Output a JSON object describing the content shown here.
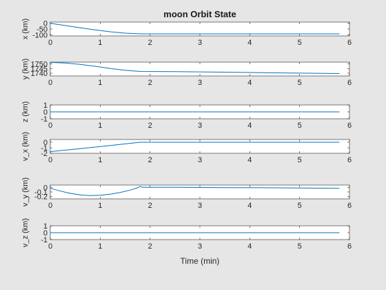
{
  "chart_data": {
    "type": "line",
    "title": "moon Orbit State",
    "xlabel": "Time (min)",
    "xlim": [
      0,
      6
    ],
    "xticks": [
      "0",
      "1",
      "2",
      "3",
      "4",
      "5",
      "6"
    ],
    "panels": [
      {
        "ylabel": "x (km)",
        "ylim": [
          -110,
          10
        ],
        "yticks": [
          {
            "v": 0,
            "label": "0"
          },
          {
            "v": -50,
            "label": "-50"
          },
          {
            "v": -100,
            "label": "-100"
          }
        ],
        "points": [
          [
            0,
            0
          ],
          [
            0.3,
            -20
          ],
          [
            0.6,
            -40
          ],
          [
            0.9,
            -58
          ],
          [
            1.2,
            -74
          ],
          [
            1.5,
            -86
          ],
          [
            1.8,
            -92
          ],
          [
            2.5,
            -92
          ],
          [
            3.5,
            -92
          ],
          [
            4.5,
            -92
          ],
          [
            5.8,
            -92
          ]
        ]
      },
      {
        "ylabel": "y (km)",
        "ylim": [
          1737,
          1752
        ],
        "yticks": [
          {
            "v": 1750,
            "label": "1750"
          },
          {
            "v": 1745,
            "label": "1745"
          },
          {
            "v": 1740,
            "label": "1740"
          }
        ],
        "points": [
          [
            0,
            1751.7
          ],
          [
            0.3,
            1751.0
          ],
          [
            0.6,
            1749.5
          ],
          [
            0.9,
            1747.5
          ],
          [
            1.2,
            1745.2
          ],
          [
            1.5,
            1743.2
          ],
          [
            1.8,
            1741.9
          ],
          [
            2.5,
            1741.7
          ],
          [
            3.5,
            1741.1
          ],
          [
            4.5,
            1740.4
          ],
          [
            5.8,
            1739.6
          ]
        ]
      },
      {
        "ylabel": "z (km)",
        "ylim": [
          -1,
          1
        ],
        "yticks": [
          {
            "v": 1,
            "label": "1"
          },
          {
            "v": 0,
            "label": "0"
          },
          {
            "v": -1,
            "label": "-1"
          }
        ],
        "points": [
          [
            0,
            0
          ],
          [
            5.8,
            0
          ]
        ]
      },
      {
        "ylabel": "v_x (km)",
        "ylim": [
          -2,
          0.5
        ],
        "yticks": [
          {
            "v": 0,
            "label": "0"
          },
          {
            "v": -1,
            "label": "-1"
          },
          {
            "v": -2,
            "label": "-2"
          }
        ],
        "points": [
          [
            0,
            -1.7
          ],
          [
            0.6,
            -1.15
          ],
          [
            1.2,
            -0.6
          ],
          [
            1.8,
            0
          ],
          [
            3,
            0
          ],
          [
            4,
            0
          ],
          [
            5.8,
            0
          ]
        ]
      },
      {
        "ylabel": "v_y (km)",
        "ylim": [
          -0.25,
          0.05
        ],
        "yticks": [
          {
            "v": 0,
            "label": "0"
          },
          {
            "v": -0.1,
            "label": "-0.1"
          },
          {
            "v": -0.2,
            "label": "-0.2"
          }
        ],
        "points": [
          [
            0,
            -0.02
          ],
          [
            0.2,
            -0.08
          ],
          [
            0.4,
            -0.13
          ],
          [
            0.6,
            -0.165
          ],
          [
            0.8,
            -0.18
          ],
          [
            1.0,
            -0.172
          ],
          [
            1.2,
            -0.148
          ],
          [
            1.4,
            -0.11
          ],
          [
            1.6,
            -0.06
          ],
          [
            1.75,
            -0.01
          ],
          [
            1.8,
            0.02
          ],
          [
            1.85,
            0.0
          ],
          [
            2.5,
            0.0
          ],
          [
            3.5,
            -0.005
          ],
          [
            4.5,
            -0.01
          ],
          [
            5.8,
            -0.02
          ]
        ]
      },
      {
        "ylabel": "v_z (km)",
        "ylim": [
          -1,
          1
        ],
        "yticks": [
          {
            "v": 1,
            "label": "1"
          },
          {
            "v": 0,
            "label": "0"
          },
          {
            "v": -1,
            "label": "-1"
          }
        ],
        "points": [
          [
            0,
            0
          ],
          [
            5.8,
            0
          ]
        ]
      }
    ],
    "line_color": "#0072bd"
  }
}
